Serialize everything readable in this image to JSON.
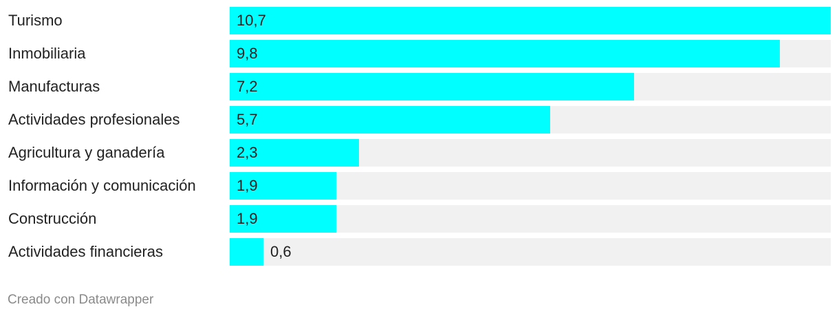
{
  "chart_data": {
    "type": "bar",
    "orientation": "horizontal",
    "categories": [
      "Turismo",
      "Inmobiliaria",
      "Manufacturas",
      "Actividades profesionales",
      "Agricultura y ganadería",
      "Información y comunicación",
      "Construcción",
      "Actividades financieras"
    ],
    "values": [
      10.7,
      9.8,
      7.2,
      5.7,
      2.3,
      1.9,
      1.9,
      0.6
    ],
    "value_labels": [
      "10,7",
      "9,8",
      "7,2",
      "5,7",
      "2,3",
      "1,9",
      "1,9",
      "0,6"
    ],
    "xlim": [
      0,
      10.7
    ],
    "grid": false,
    "legend": "none",
    "bar_color": "#00ffff",
    "track_color": "#f1f1f1"
  },
  "footer": {
    "credit": "Creado con Datawrapper"
  }
}
